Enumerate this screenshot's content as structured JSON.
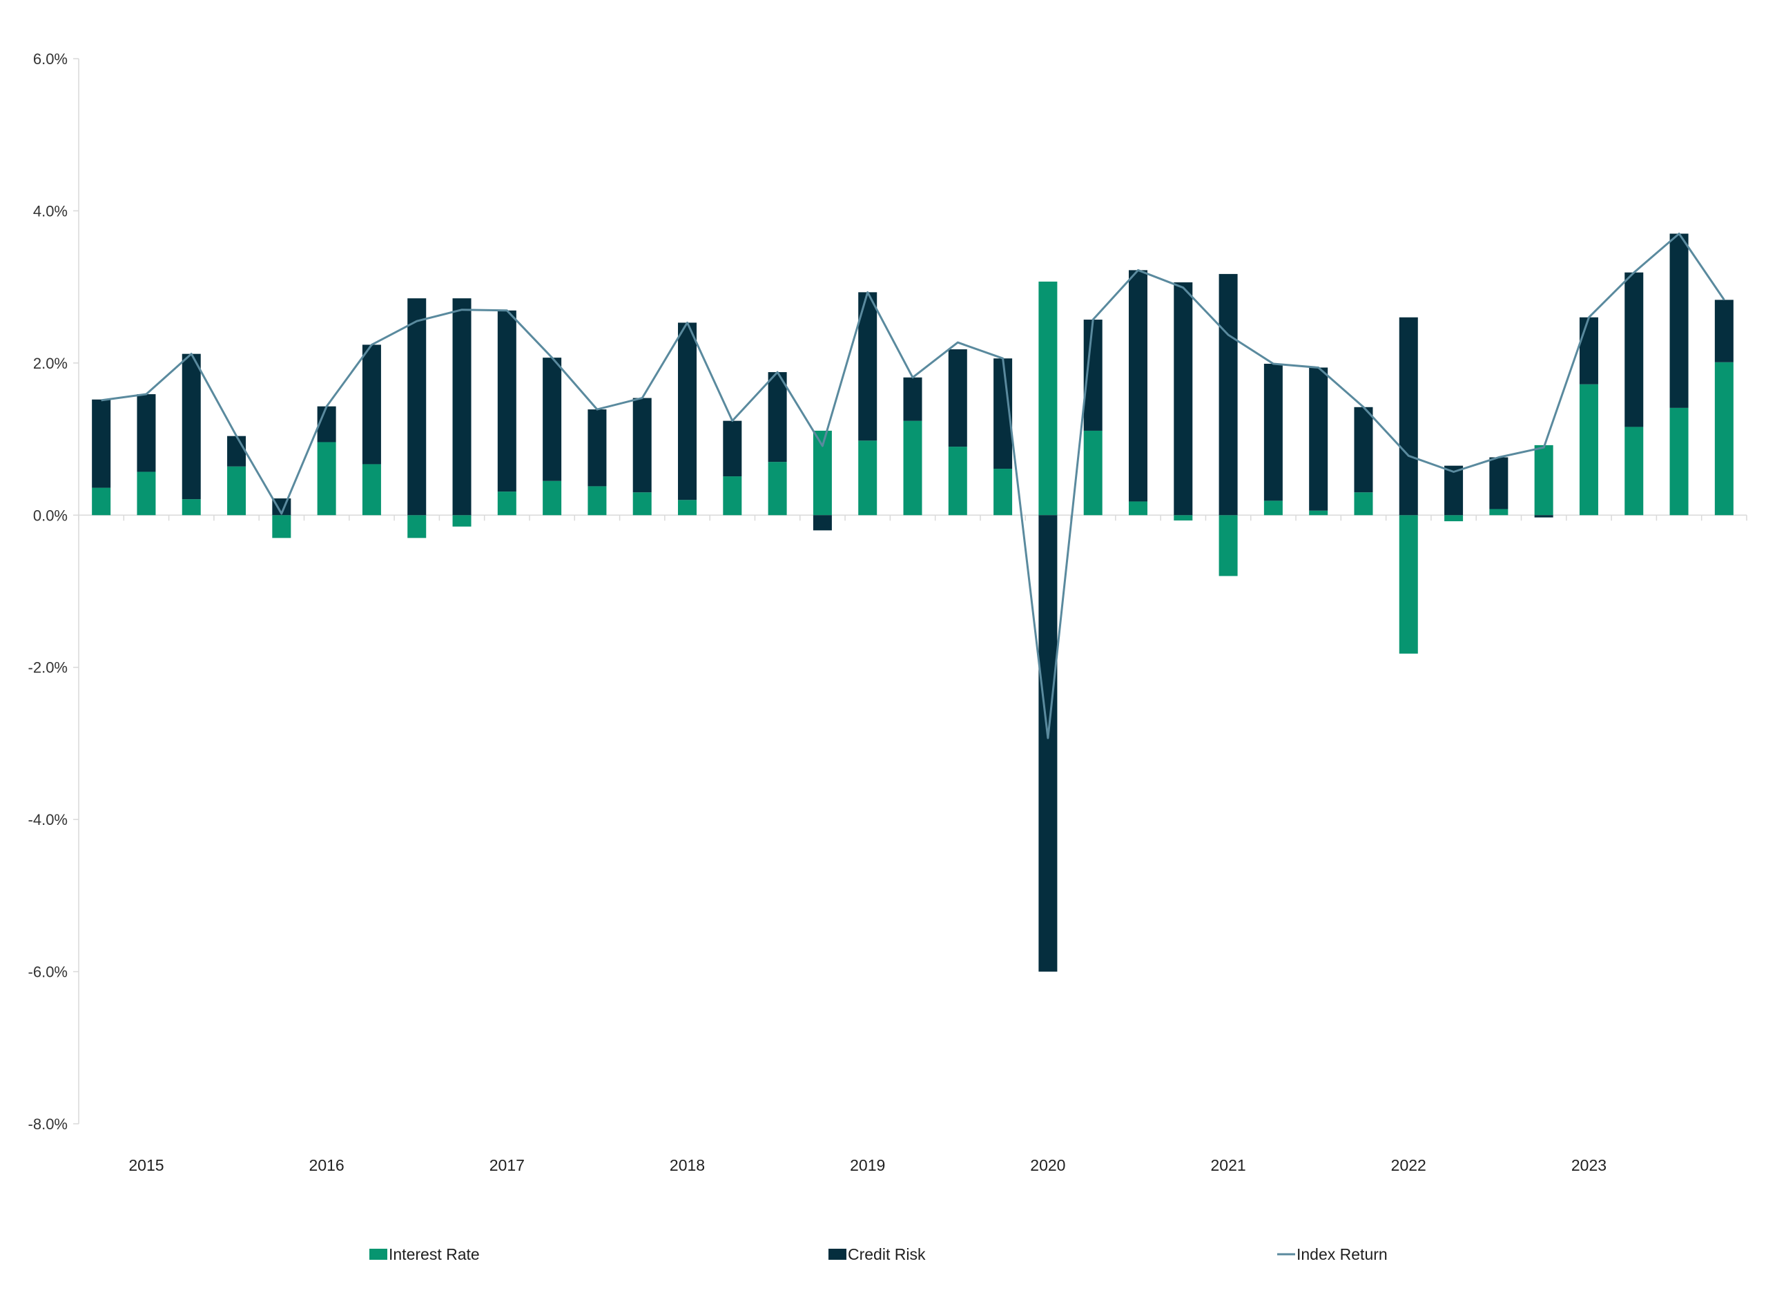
{
  "chart_data": {
    "type": "bar",
    "stacked": true,
    "title": "",
    "xlabel": "",
    "ylabel": "",
    "ylim": [
      -8.0,
      6.0
    ],
    "yticks": [
      "6.0%",
      "4.0%",
      "2.0%",
      "0.0%",
      "-2.0%",
      "-4.0%",
      "-6.0%",
      "-8.0%"
    ],
    "ytick_values": [
      6,
      4,
      2,
      0,
      -2,
      -4,
      -6,
      -8
    ],
    "year_labels": [
      "2015",
      "2016",
      "2017",
      "2018",
      "2019",
      "2020",
      "2021",
      "2022",
      "2023"
    ],
    "categories": [
      "2015 Q1",
      "2015 Q2",
      "2015 Q3",
      "2015 Q4",
      "2016 Q1",
      "2016 Q2",
      "2016 Q3",
      "2016 Q4",
      "2017 Q1",
      "2017 Q2",
      "2017 Q3",
      "2017 Q4",
      "2018 Q1",
      "2018 Q2",
      "2018 Q3",
      "2018 Q4",
      "2019 Q1",
      "2019 Q2",
      "2019 Q3",
      "2019 Q4",
      "2020 Q1",
      "2020 Q2",
      "2020 Q3",
      "2020 Q4",
      "2021 Q1",
      "2021 Q2",
      "2021 Q3",
      "2021 Q4",
      "2022 Q1",
      "2022 Q2",
      "2022 Q3",
      "2022 Q4",
      "2023 Q1",
      "2023 Q2",
      "2023 Q3",
      "2023 Q4",
      "2024 Q1"
    ],
    "series": [
      {
        "name": "Interest Rate",
        "kind": "bar",
        "color": "#079570",
        "values": [
          0.36,
          0.57,
          0.21,
          0.64,
          -0.3,
          0.96,
          0.67,
          -0.3,
          -0.15,
          0.31,
          0.45,
          0.38,
          0.3,
          0.2,
          0.51,
          0.7,
          1.11,
          0.98,
          1.24,
          0.9,
          0.61,
          3.07,
          1.11,
          0.18,
          -0.07,
          -0.8,
          0.19,
          0.06,
          0.3,
          -1.82,
          -0.08,
          0.08,
          0.92,
          1.72,
          1.16,
          1.41,
          2.01
        ]
      },
      {
        "name": "Credit Risk",
        "kind": "bar",
        "color": "#052e3e",
        "values": [
          1.16,
          1.02,
          1.91,
          0.4,
          0.22,
          0.47,
          1.57,
          2.85,
          2.85,
          2.38,
          1.62,
          1.01,
          1.24,
          2.33,
          0.73,
          1.18,
          -0.2,
          1.95,
          0.57,
          1.28,
          1.45,
          -6.0,
          1.46,
          3.04,
          3.06,
          3.17,
          1.8,
          1.88,
          1.12,
          2.6,
          0.65,
          0.68,
          -0.03,
          0.88,
          2.03,
          2.29,
          0.82
        ]
      },
      {
        "name": "Index Return",
        "kind": "line",
        "color": "#5a8a9e",
        "values": [
          1.51,
          1.59,
          2.12,
          1.04,
          0.02,
          1.43,
          2.24,
          2.55,
          2.7,
          2.69,
          2.07,
          1.39,
          1.54,
          2.53,
          1.24,
          1.88,
          0.91,
          2.93,
          1.81,
          2.27,
          2.06,
          -2.93,
          2.57,
          3.22,
          2.99,
          2.37,
          1.99,
          1.94,
          1.42,
          0.78,
          0.57,
          0.76,
          0.89,
          2.6,
          3.19,
          3.7,
          2.83
        ]
      }
    ],
    "legend_position": "bottom",
    "grid": false
  }
}
